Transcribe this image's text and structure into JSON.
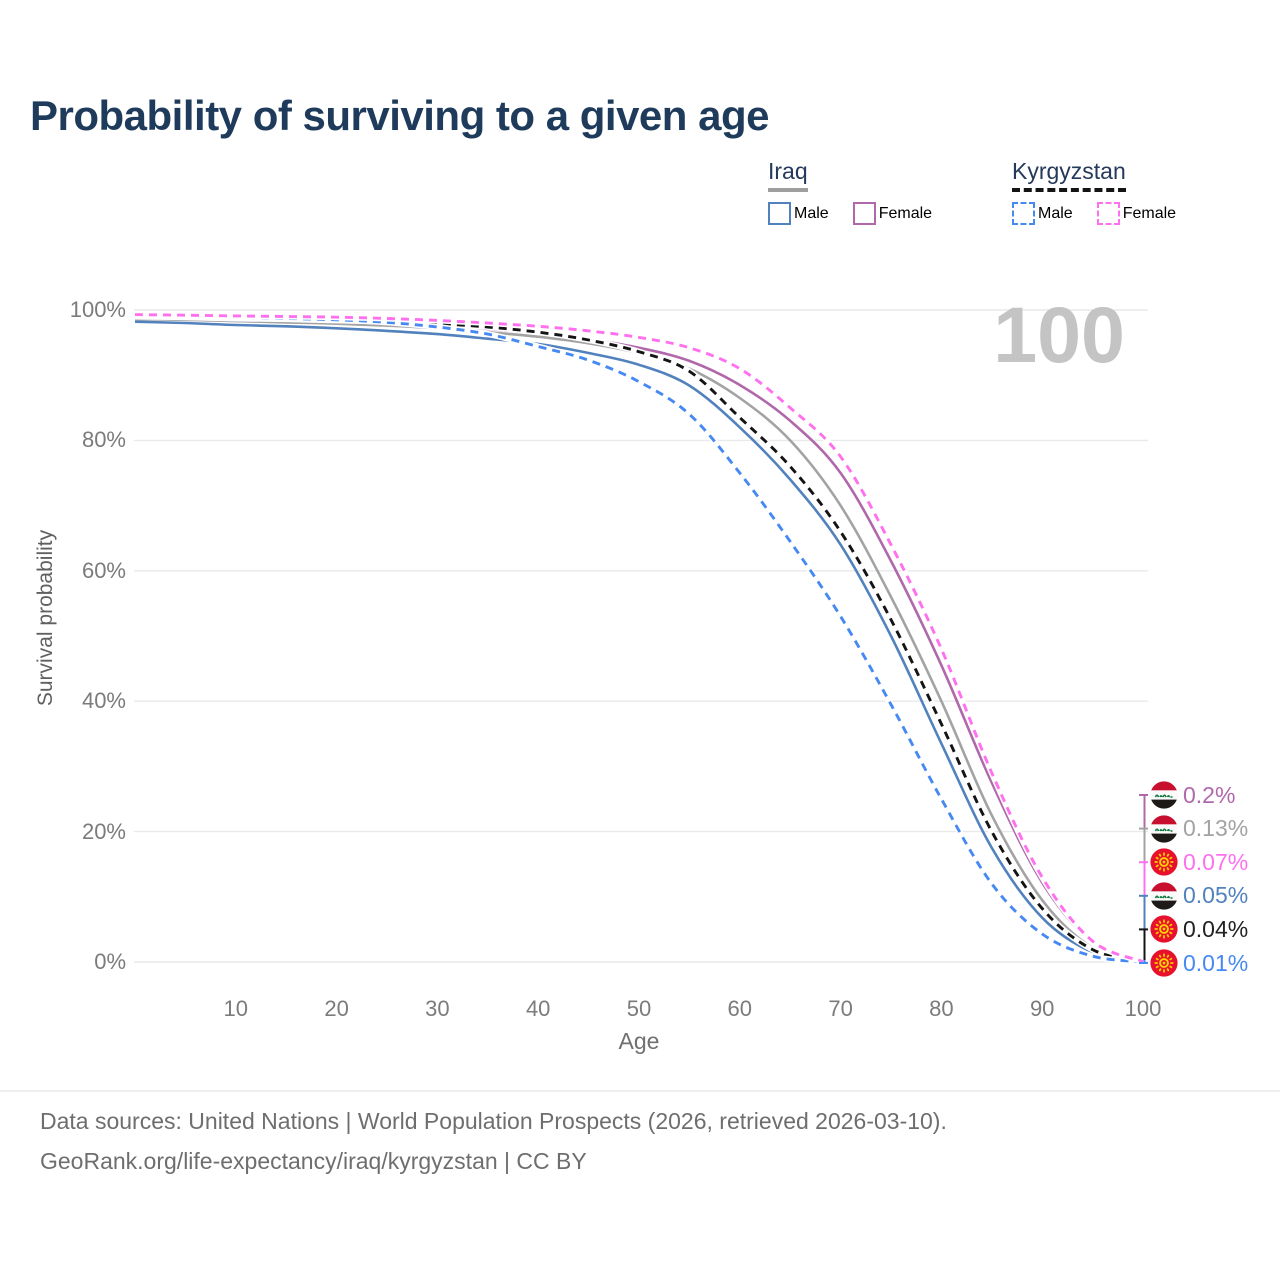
{
  "page": {
    "title": "Probability of surviving to a given age"
  },
  "legend": {
    "groups": [
      {
        "label": "Iraq",
        "underline_style": "solid",
        "underline_color": "#9e9e9e",
        "items": [
          {
            "label": "Male",
            "color": "#5182bd",
            "dash": "solid"
          },
          {
            "label": "Female",
            "color": "#b068ab",
            "dash": "solid"
          }
        ]
      },
      {
        "label": "Kyrgyzstan",
        "underline_style": "dashed",
        "underline_color": "#141414",
        "items": [
          {
            "label": "Male",
            "color": "#4689f3",
            "dash": "dashed"
          },
          {
            "label": "Female",
            "color": "#ff70ee",
            "dash": "dashed"
          }
        ]
      }
    ]
  },
  "chart_data": {
    "type": "line",
    "title": "Probability of surviving to a given age",
    "xlabel": "Age",
    "ylabel": "Survival probability",
    "xlim": [
      0,
      100
    ],
    "ylim": [
      0,
      100
    ],
    "grid": "horizontal",
    "legend_position": "top-right",
    "hover_age_label": "100",
    "x_ticks": [
      10,
      20,
      30,
      40,
      50,
      60,
      70,
      80,
      90,
      100
    ],
    "y_ticks": [
      {
        "value": 0,
        "label": "0%"
      },
      {
        "value": 20,
        "label": "20%"
      },
      {
        "value": 40,
        "label": "40%"
      },
      {
        "value": 60,
        "label": "60%"
      },
      {
        "value": 80,
        "label": "80%"
      },
      {
        "value": 100,
        "label": "100%"
      }
    ],
    "x": [
      0,
      5,
      10,
      15,
      20,
      25,
      30,
      35,
      40,
      45,
      50,
      55,
      60,
      65,
      70,
      75,
      80,
      85,
      90,
      95,
      100
    ],
    "series": [
      {
        "name": "Iraq Male",
        "country": "Iraq",
        "sex": "Male",
        "line": {
          "color": "#5182bd",
          "style": "solid"
        },
        "end": {
          "label": "0.05%",
          "text_color": "#5182bd",
          "flag": "iraq"
        },
        "values": [
          98.2,
          98.0,
          97.7,
          97.5,
          97.2,
          96.8,
          96.3,
          95.6,
          94.8,
          93.4,
          91.6,
          88.4,
          82.0,
          74.0,
          64.0,
          50.0,
          33.5,
          17.5,
          6.8,
          1.5,
          0.05
        ]
      },
      {
        "name": "Iraq Both sexes",
        "country": "Iraq",
        "sex": "Both",
        "line": {
          "color": "#a3a3a3",
          "style": "solid"
        },
        "end": {
          "label": "0.13%",
          "text_color": "#a3a3a3",
          "flag": "iraq"
        },
        "values": [
          98.6,
          98.5,
          98.3,
          98.1,
          97.9,
          97.6,
          97.2,
          96.6,
          95.9,
          94.9,
          93.4,
          91.0,
          86.5,
          80.0,
          70.0,
          56.0,
          40.0,
          22.5,
          9.5,
          2.2,
          0.13
        ]
      },
      {
        "name": "Iraq Female",
        "country": "Iraq",
        "sex": "Female",
        "line": {
          "color": "#b068ab",
          "style": "solid"
        },
        "end": {
          "label": "0.2%",
          "text_color": "#b068ab",
          "flag": "iraq"
        },
        "values": [
          98.9,
          98.8,
          98.7,
          98.5,
          98.3,
          98.0,
          97.6,
          97.1,
          96.4,
          95.5,
          94.2,
          92.2,
          88.5,
          83.0,
          75.0,
          61.5,
          45.5,
          27.5,
          12.2,
          3.0,
          0.2
        ]
      },
      {
        "name": "Kyrgyzstan Both sexes",
        "country": "Kyrgyzstan",
        "sex": "Both",
        "line": {
          "color": "#141414",
          "style": "dashed"
        },
        "end": {
          "label": "0.04%",
          "text_color": "#222222",
          "flag": "kyrgyzstan"
        },
        "values": [
          99.0,
          98.9,
          98.7,
          98.6,
          98.4,
          98.2,
          97.9,
          97.4,
          96.6,
          95.4,
          93.6,
          90.6,
          83.5,
          76.0,
          66.0,
          52.5,
          36.5,
          20.0,
          8.2,
          1.9,
          0.04
        ]
      },
      {
        "name": "Kyrgyzstan Male",
        "country": "Kyrgyzstan",
        "sex": "Male",
        "line": {
          "color": "#4689f3",
          "style": "dashed"
        },
        "end": {
          "label": "0.01%",
          "text_color": "#4689f3",
          "flag": "kyrgyzstan"
        },
        "values": [
          99.2,
          99.0,
          98.9,
          98.7,
          98.5,
          98.1,
          97.4,
          96.3,
          94.4,
          92.3,
          89.0,
          84.0,
          75.0,
          64.5,
          53.0,
          39.5,
          25.0,
          12.0,
          4.3,
          0.9,
          0.01
        ]
      },
      {
        "name": "Kyrgyzstan Female",
        "country": "Kyrgyzstan",
        "sex": "Female",
        "line": {
          "color": "#ff70ee",
          "style": "dashed"
        },
        "end": {
          "label": "0.07%",
          "text_color": "#ff70ee",
          "flag": "kyrgyzstan"
        },
        "values": [
          99.3,
          99.2,
          99.1,
          99.0,
          98.9,
          98.7,
          98.4,
          98.0,
          97.5,
          96.8,
          95.8,
          94.2,
          91.0,
          85.0,
          77.5,
          64.0,
          48.0,
          29.0,
          13.0,
          3.2,
          0.07
        ]
      }
    ]
  },
  "footer": {
    "line1": "Data sources: United Nations | World Population Prospects (2026, retrieved 2026-03-10).",
    "line2": "GeoRank.org/life-expectancy/iraq/kyrgyzstan | CC BY"
  }
}
